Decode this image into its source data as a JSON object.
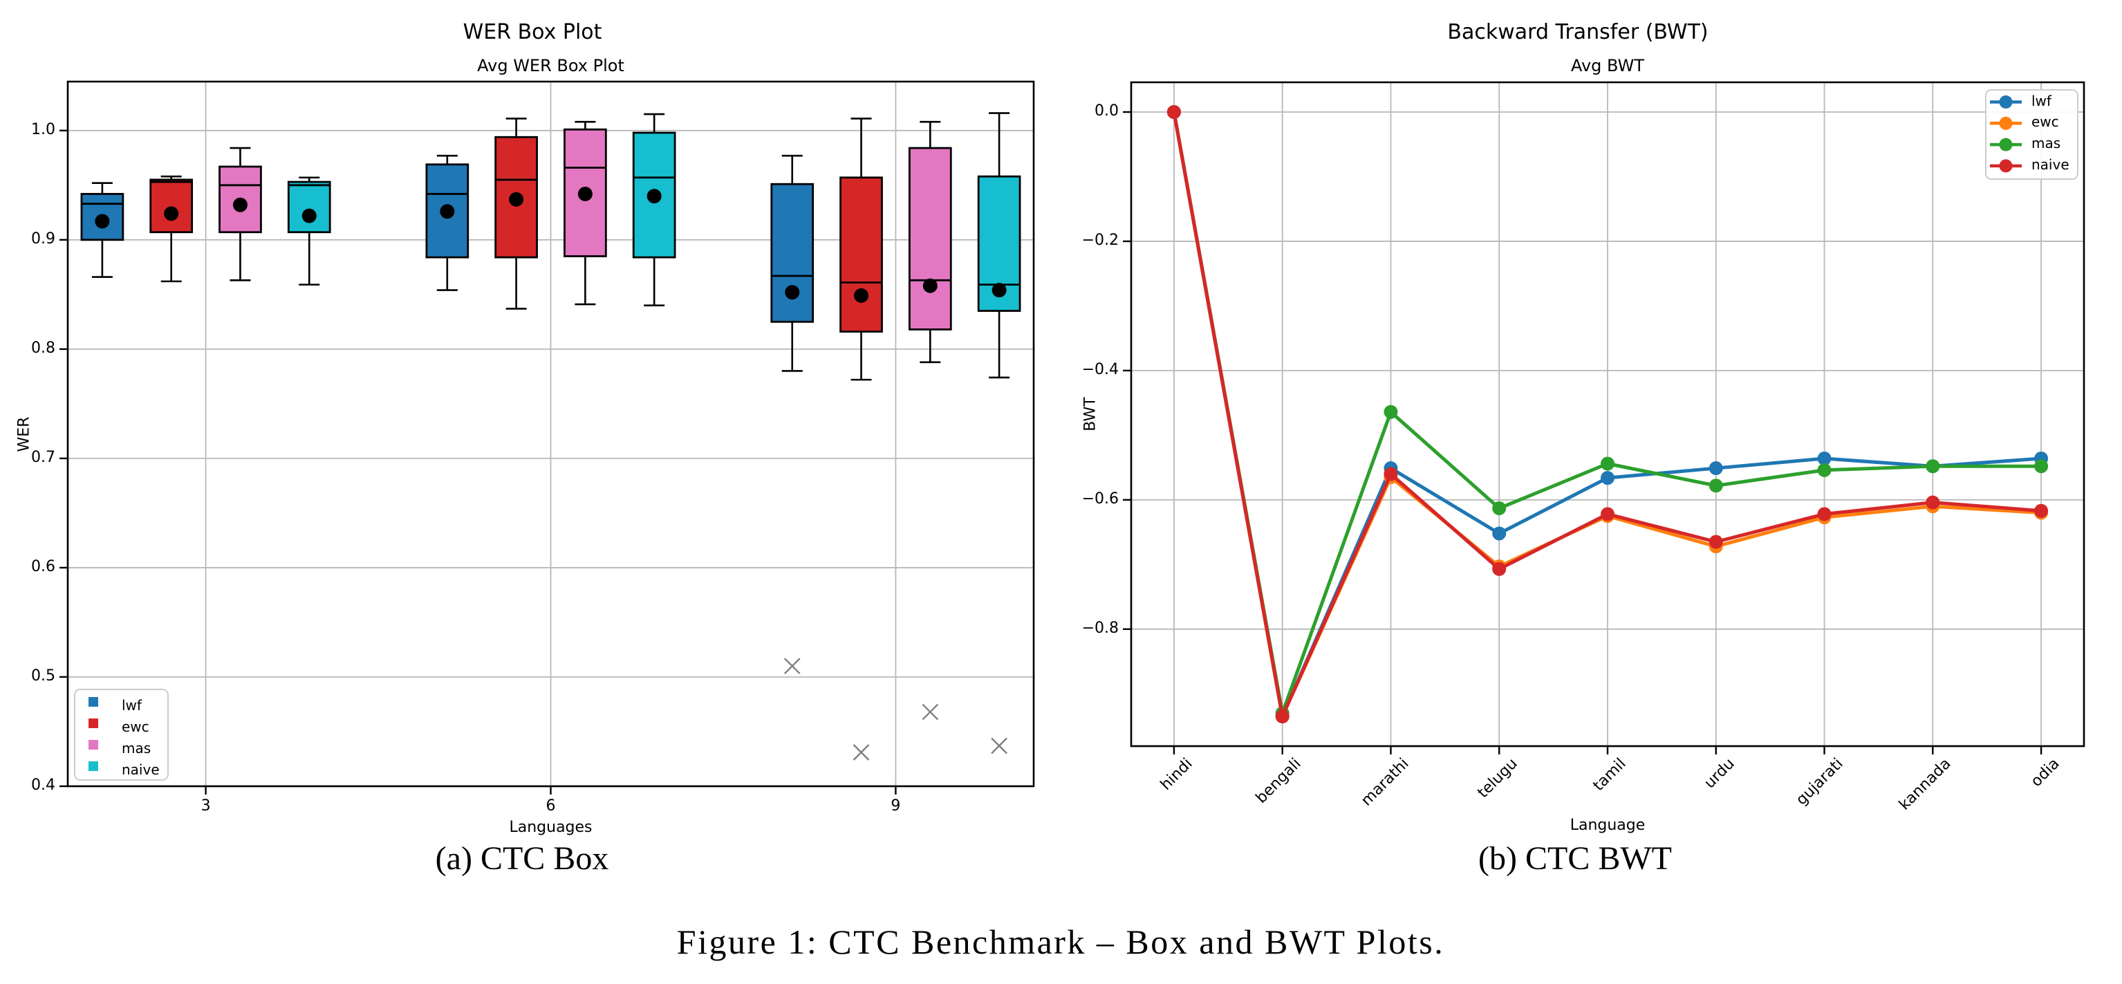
{
  "figure": {
    "subcaption_a": "(a) CTC Box",
    "subcaption_b": "(b) CTC BWT",
    "caption": "Figure 1: CTC Benchmark – Box and BWT Plots."
  },
  "chart_data": [
    {
      "type": "box",
      "title": "WER Box Plot",
      "subtitle": "Avg WER Box Plot",
      "xlabel": "Languages",
      "ylabel": "WER",
      "xlim": [
        1.8,
        10.2
      ],
      "ylim": [
        0.4,
        1.0448
      ],
      "yticks": [
        0.4,
        0.5,
        0.6,
        0.7,
        0.8,
        0.9,
        1.0
      ],
      "ytick_labels": [
        "0.4",
        "0.5",
        "0.6",
        "0.7",
        "0.8",
        "0.9",
        "1.0"
      ],
      "xticks": [
        3,
        6,
        9
      ],
      "xtick_labels": [
        "3",
        "6",
        "9"
      ],
      "grid": true,
      "group_positions": [
        3,
        6,
        9
      ],
      "offsets": [
        -0.9,
        -0.3,
        0.3,
        0.9
      ],
      "box_width": 0.36,
      "flier_color": "#7f7f7f",
      "legend_location": "lower-left",
      "series": [
        {
          "name": "lwf",
          "color": "#1f77b4",
          "boxes": [
            {
              "whislo": 0.866,
              "q1": 0.9,
              "med": 0.933,
              "q3": 0.942,
              "whishi": 0.952,
              "mean": 0.917,
              "fliers": []
            },
            {
              "whislo": 0.854,
              "q1": 0.884,
              "med": 0.942,
              "q3": 0.969,
              "whishi": 0.977,
              "mean": 0.926,
              "fliers": []
            },
            {
              "whislo": 0.78,
              "q1": 0.825,
              "med": 0.867,
              "q3": 0.951,
              "whishi": 0.977,
              "mean": 0.852,
              "fliers": [
                0.51
              ]
            }
          ]
        },
        {
          "name": "ewc",
          "color": "#d62728",
          "boxes": [
            {
              "whislo": 0.862,
              "q1": 0.907,
              "med": 0.953,
              "q3": 0.955,
              "whishi": 0.958,
              "mean": 0.924,
              "fliers": []
            },
            {
              "whislo": 0.837,
              "q1": 0.884,
              "med": 0.955,
              "q3": 0.994,
              "whishi": 1.011,
              "mean": 0.937,
              "fliers": []
            },
            {
              "whislo": 0.772,
              "q1": 0.816,
              "med": 0.861,
              "q3": 0.957,
              "whishi": 1.011,
              "mean": 0.849,
              "fliers": [
                0.431
              ]
            }
          ]
        },
        {
          "name": "mas",
          "color": "#e377c2",
          "boxes": [
            {
              "whislo": 0.863,
              "q1": 0.907,
              "med": 0.95,
              "q3": 0.967,
              "whishi": 0.984,
              "mean": 0.932,
              "fliers": []
            },
            {
              "whislo": 0.841,
              "q1": 0.885,
              "med": 0.966,
              "q3": 1.001,
              "whishi": 1.008,
              "mean": 0.942,
              "fliers": []
            },
            {
              "whislo": 0.788,
              "q1": 0.818,
              "med": 0.863,
              "q3": 0.984,
              "whishi": 1.008,
              "mean": 0.858,
              "fliers": [
                0.468
              ]
            }
          ]
        },
        {
          "name": "naive",
          "color": "#17becf",
          "boxes": [
            {
              "whislo": 0.859,
              "q1": 0.907,
              "med": 0.95,
              "q3": 0.953,
              "whishi": 0.957,
              "mean": 0.922,
              "fliers": []
            },
            {
              "whislo": 0.84,
              "q1": 0.884,
              "med": 0.957,
              "q3": 0.998,
              "whishi": 1.015,
              "mean": 0.94,
              "fliers": []
            },
            {
              "whislo": 0.774,
              "q1": 0.835,
              "med": 0.859,
              "q3": 0.958,
              "whishi": 1.016,
              "mean": 0.854,
              "fliers": [
                0.437
              ]
            }
          ]
        }
      ]
    },
    {
      "type": "line",
      "title": "Backward Transfer (BWT)",
      "subtitle": "Avg BWT",
      "xlabel": "Language",
      "ylabel": "BWT",
      "categories": [
        "hindi",
        "bengali",
        "marathi",
        "telugu",
        "tamil",
        "urdu",
        "gujarati",
        "kannada",
        "odia"
      ],
      "ylim": [
        -0.981,
        0.046
      ],
      "yticks": [
        0.0,
        -0.2,
        -0.4,
        -0.6,
        -0.8
      ],
      "ytick_labels": [
        "0.0",
        "−0.2",
        "−0.4",
        "−0.6",
        "−0.8"
      ],
      "x_margin": 0.395,
      "grid": true,
      "legend_location": "upper-right",
      "series": [
        {
          "name": "lwf",
          "color": "#1f77b4",
          "values": [
            0.0,
            -0.935,
            -0.551,
            -0.652,
            -0.566,
            -0.551,
            -0.536,
            -0.548,
            -0.536
          ]
        },
        {
          "name": "ewc",
          "color": "#ff7f0e",
          "values": [
            0.0,
            -0.935,
            -0.565,
            -0.703,
            -0.625,
            -0.672,
            -0.627,
            -0.61,
            -0.62
          ]
        },
        {
          "name": "mas",
          "color": "#2ca02c",
          "values": [
            0.0,
            -0.93,
            -0.464,
            -0.613,
            -0.544,
            -0.578,
            -0.554,
            -0.548,
            -0.548
          ]
        },
        {
          "name": "naive",
          "color": "#d62728",
          "values": [
            0.0,
            -0.935,
            -0.56,
            -0.707,
            -0.622,
            -0.665,
            -0.622,
            -0.604,
            -0.617
          ]
        }
      ]
    }
  ]
}
